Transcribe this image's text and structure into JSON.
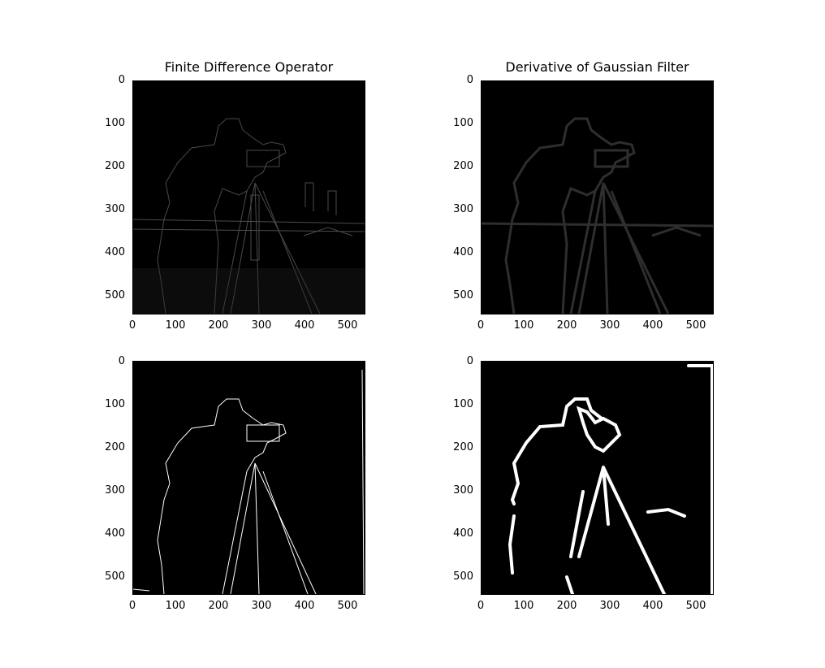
{
  "panels": [
    {
      "title": "Finite Difference Operator",
      "style": "faint-edges"
    },
    {
      "title": "Derivative of Gaussian Filter",
      "style": "blurred-edges"
    },
    {
      "title": "",
      "style": "thin-binary-edges"
    },
    {
      "title": "",
      "style": "thick-binary-edges"
    }
  ],
  "axes": {
    "x_ticks": [
      "0",
      "100",
      "200",
      "300",
      "400",
      "500"
    ],
    "y_ticks": [
      "0",
      "100",
      "200",
      "300",
      "400",
      "500"
    ],
    "x_range": [
      0,
      542
    ],
    "y_range": [
      0,
      542
    ]
  },
  "colors": {
    "background": "#000000",
    "faint_edge": "#3a3a3a",
    "blur_edge": "#2a2a2a",
    "strong_edge": "#ffffff"
  }
}
